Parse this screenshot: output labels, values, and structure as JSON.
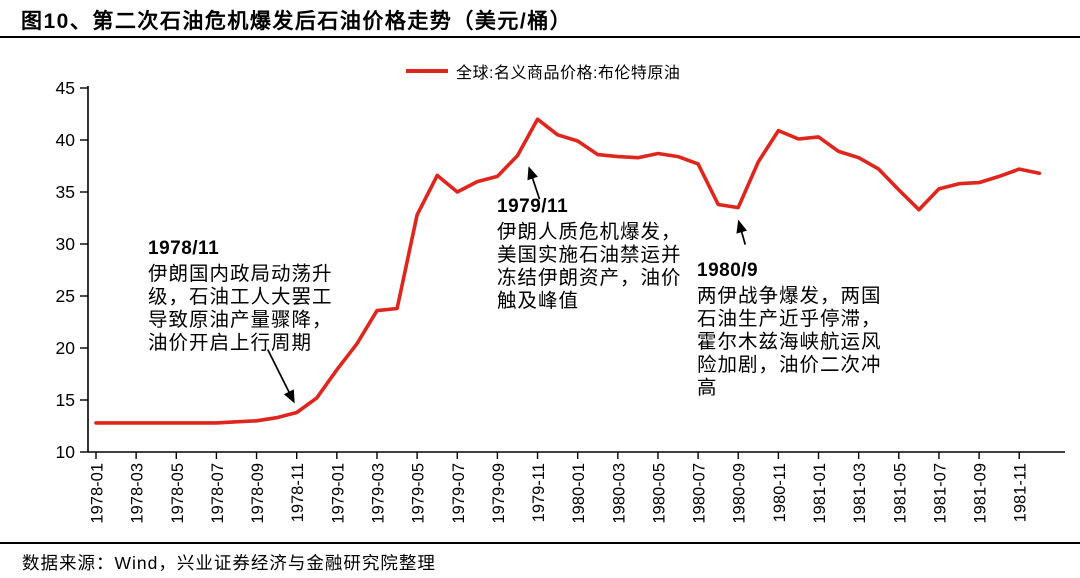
{
  "title": "图10、第二次石油危机爆发后石油价格走势（美元/桶）",
  "legend": {
    "label": "全球:名义商品价格:布伦特原油"
  },
  "footer": {
    "source": "数据来源：Wind，兴业证券经济与金融研究院整理"
  },
  "annotations": [
    {
      "date": "1978/11",
      "text": "伊朗国内政局动荡升级，石油工人大罢工导致原油产量骤降，油价开启上行周期",
      "target_month": "1978-11"
    },
    {
      "date": "1979/11",
      "text": "伊朗人质危机爆发，美国实施石油禁运并冻结伊朗资产，油价触及峰值",
      "target_month": "1979-11"
    },
    {
      "date": "1980/9",
      "text": "两伊战争爆发，两国石油生产近乎停滞，霍尔木兹海峡航运风险加剧，油价二次冲高",
      "target_month": "1980-09"
    }
  ],
  "chart_data": {
    "type": "line",
    "title": "第二次石油危机爆发后石油价格走势（美元/桶）",
    "xlabel": "",
    "ylabel": "",
    "ylim": [
      10,
      45
    ],
    "ytick_step": 5,
    "grid": false,
    "legend_position": "top-center",
    "x_label_every": 2,
    "categories": [
      "1978-01",
      "1978-02",
      "1978-03",
      "1978-04",
      "1978-05",
      "1978-06",
      "1978-07",
      "1978-08",
      "1978-09",
      "1978-10",
      "1978-11",
      "1978-12",
      "1979-01",
      "1979-02",
      "1979-03",
      "1979-04",
      "1979-05",
      "1979-06",
      "1979-07",
      "1979-08",
      "1979-09",
      "1979-10",
      "1979-11",
      "1979-12",
      "1980-01",
      "1980-02",
      "1980-03",
      "1980-04",
      "1980-05",
      "1980-06",
      "1980-07",
      "1980-08",
      "1980-09",
      "1980-10",
      "1980-11",
      "1980-12",
      "1981-01",
      "1981-02",
      "1981-03",
      "1981-04",
      "1981-05",
      "1981-06",
      "1981-07",
      "1981-08",
      "1981-09",
      "1981-10",
      "1981-11",
      "1981-12"
    ],
    "series": [
      {
        "name": "全球:名义商品价格:布伦特原油",
        "color": "#e0251c",
        "values": [
          12.8,
          12.8,
          12.8,
          12.8,
          12.8,
          12.8,
          12.8,
          12.9,
          13.0,
          13.3,
          13.8,
          15.2,
          17.9,
          20.4,
          23.6,
          23.8,
          32.8,
          36.6,
          35.0,
          36.0,
          36.5,
          38.5,
          42.0,
          40.5,
          39.9,
          38.6,
          38.4,
          38.3,
          38.7,
          38.4,
          37.7,
          33.8,
          33.5,
          37.9,
          40.9,
          40.1,
          40.3,
          38.9,
          38.3,
          37.2,
          35.2,
          33.3,
          35.3,
          35.8,
          35.9,
          36.5,
          37.2,
          36.8
        ]
      }
    ]
  }
}
